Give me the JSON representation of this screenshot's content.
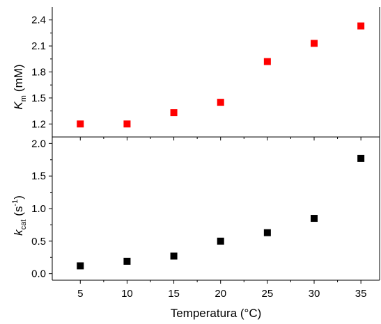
{
  "chart_data": [
    {
      "type": "scatter",
      "panel": "top",
      "ylabel": {
        "symbol": "K",
        "subscript": "m",
        "unit": "(mM)"
      },
      "xlabel": "",
      "ylim": [
        1.05,
        2.55
      ],
      "yticks": [
        1.2,
        1.5,
        1.8,
        2.1,
        2.4
      ],
      "ytick_labels": [
        "1.2",
        "1.5",
        "1.8",
        "2.1",
        "2.4"
      ],
      "xlim": [
        2,
        37
      ],
      "xticks": [
        5,
        10,
        15,
        20,
        25,
        30,
        35
      ],
      "series": [
        {
          "x": [
            5,
            10,
            15,
            20,
            25,
            30,
            35
          ],
          "y": [
            1.2,
            1.2,
            1.33,
            1.45,
            1.92,
            2.13,
            2.33
          ],
          "color": "#ff0000",
          "marker": "square"
        }
      ]
    },
    {
      "type": "scatter",
      "panel": "bottom",
      "ylabel": {
        "symbol": "k",
        "subscript": "cat",
        "unit_prefix": "(s",
        "unit_sup": "-1",
        "unit_suffix": ")"
      },
      "xlabel": "Temperatura (°C)",
      "ylim": [
        -0.1,
        2.1
      ],
      "yticks": [
        0.0,
        0.5,
        1.0,
        1.5,
        2.0
      ],
      "ytick_labels": [
        "0.0",
        "0.5",
        "1.0",
        "1.5",
        "2.0"
      ],
      "xlim": [
        2,
        37
      ],
      "xticks": [
        5,
        10,
        15,
        20,
        25,
        30,
        35
      ],
      "xtick_labels": [
        "5",
        "10",
        "15",
        "20",
        "25",
        "30",
        "35"
      ],
      "series": [
        {
          "x": [
            5,
            10,
            15,
            20,
            25,
            30,
            35
          ],
          "y": [
            0.12,
            0.19,
            0.27,
            0.5,
            0.63,
            0.85,
            1.77
          ],
          "color": "#000000",
          "marker": "square"
        }
      ]
    }
  ]
}
